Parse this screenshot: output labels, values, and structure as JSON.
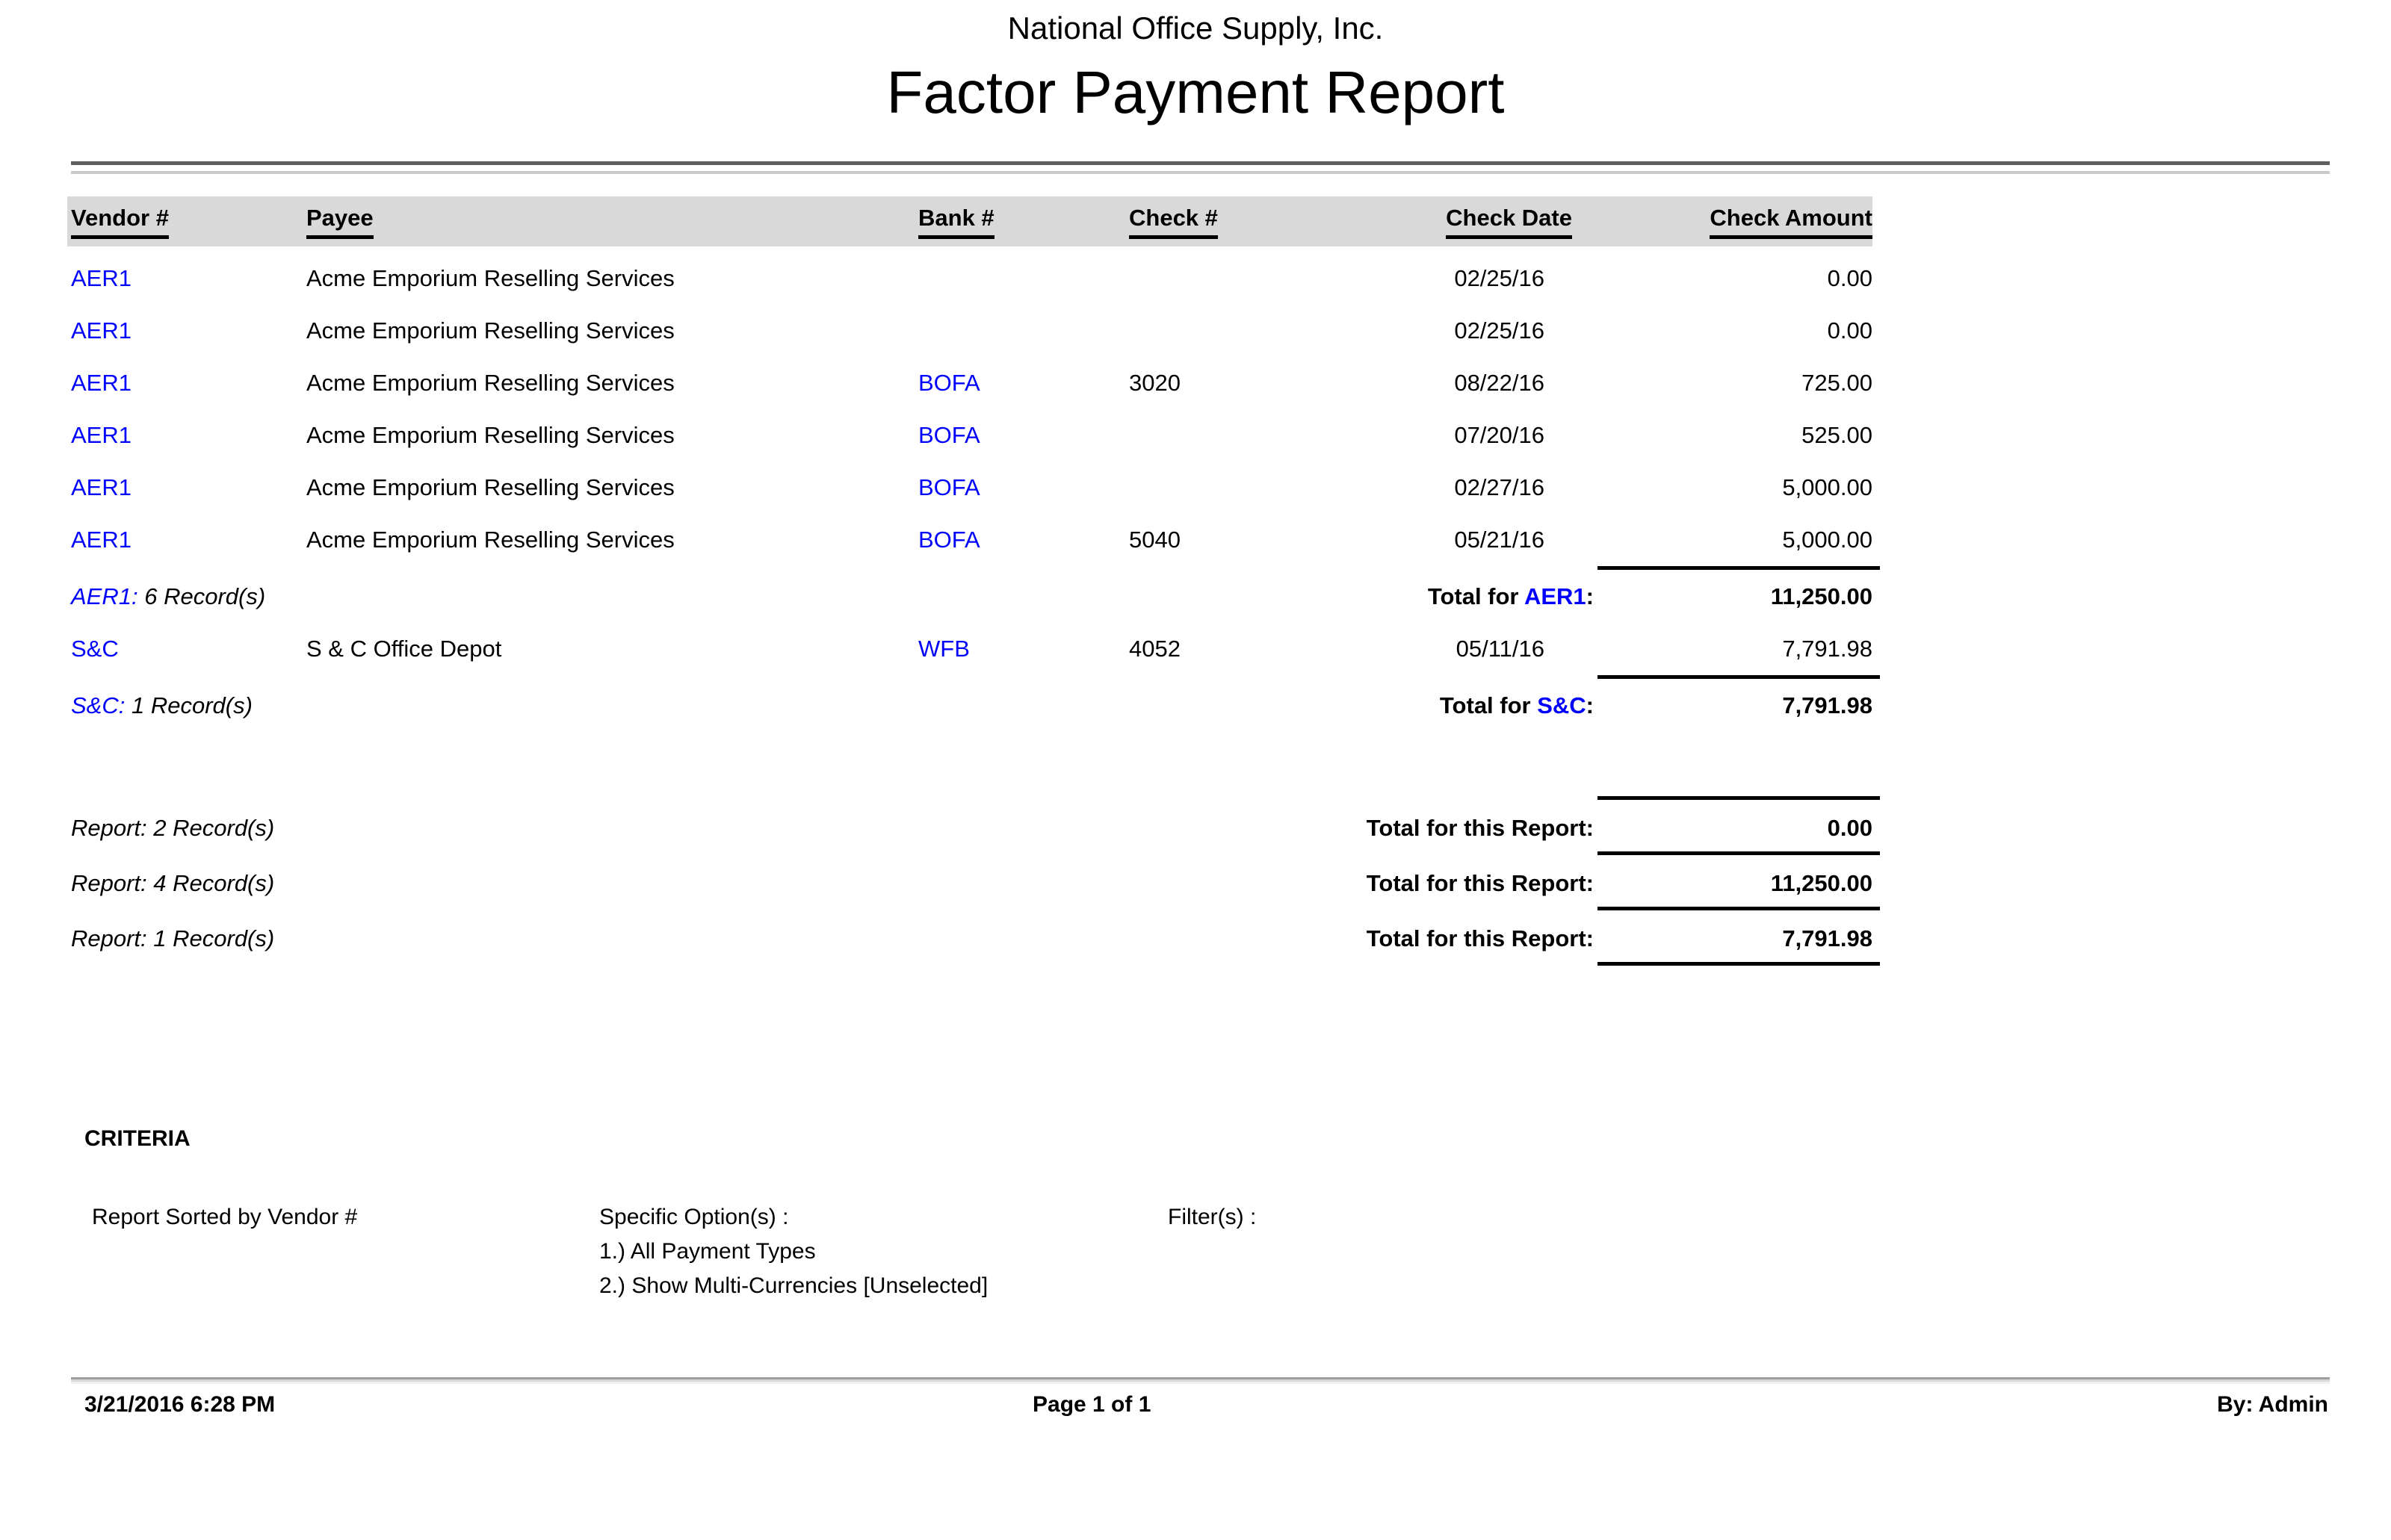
{
  "page": {
    "company": "National Office Supply, Inc.",
    "title": "Factor Payment Report"
  },
  "table": {
    "columns": {
      "vendor": "Vendor #",
      "payee": "Payee",
      "bank": "Bank #",
      "check": "Check #",
      "date": "Check Date",
      "amount": "Check Amount"
    },
    "groups": [
      {
        "rows": [
          {
            "vendor": "AER1",
            "payee": "Acme Emporium Reselling Services",
            "bank": "",
            "check_no": "",
            "check_date": "02/25/16",
            "amount": "0.00"
          },
          {
            "vendor": "AER1",
            "payee": "Acme Emporium Reselling Services",
            "bank": "",
            "check_no": "",
            "check_date": "02/25/16",
            "amount": "0.00"
          },
          {
            "vendor": "AER1",
            "payee": "Acme Emporium Reselling Services",
            "bank": "BOFA",
            "check_no": "3020",
            "check_date": "08/22/16",
            "amount": "725.00"
          },
          {
            "vendor": "AER1",
            "payee": "Acme Emporium Reselling Services",
            "bank": "BOFA",
            "check_no": "",
            "check_date": "07/20/16",
            "amount": "525.00"
          },
          {
            "vendor": "AER1",
            "payee": "Acme Emporium Reselling Services",
            "bank": "BOFA",
            "check_no": "",
            "check_date": "02/27/16",
            "amount": "5,000.00"
          },
          {
            "vendor": "AER1",
            "payee": "Acme Emporium Reselling Services",
            "bank": "BOFA",
            "check_no": "5040",
            "check_date": "05/21/16",
            "amount": "5,000.00"
          }
        ],
        "records_code": "AER1:",
        "records_rest": " 6 Record(s)",
        "total_prefix": "Total for ",
        "total_code": "AER1",
        "total_suffix": ":",
        "total_amount": "11,250.00"
      },
      {
        "rows": [
          {
            "vendor": "S&C",
            "payee": "S & C Office Depot",
            "bank": "WFB",
            "check_no": "4052",
            "check_date": "05/11/16",
            "amount": "7,791.98"
          }
        ],
        "records_code": "S&C:",
        "records_rest": " 1 Record(s)",
        "total_prefix": "Total for ",
        "total_code": "S&C",
        "total_suffix": ":",
        "total_amount": "7,791.98"
      }
    ],
    "report_totals": [
      {
        "records": "Report: 2 Record(s)",
        "label": "Total for this Report:",
        "amount": "0.00"
      },
      {
        "records": "Report: 4 Record(s)",
        "label": "Total for this Report:",
        "amount": "11,250.00"
      },
      {
        "records": "Report: 1 Record(s)",
        "label": "Total for this Report:",
        "amount": "7,791.98"
      }
    ]
  },
  "criteria": {
    "heading": "CRITERIA",
    "sorted_by": "Report Sorted by Vendor #",
    "specific_options_label": "Specific Option(s) :",
    "options": [
      "1.) All Payment Types",
      "2.) Show Multi-Currencies [Unselected]"
    ],
    "filters_label": "Filter(s) :"
  },
  "footer": {
    "datetime": "3/21/2016 6:28 PM",
    "page": "Page 1 of 1",
    "by": "By: Admin"
  },
  "colors": {
    "link_blue": "#0000ff",
    "header_band": "#d9d9d9"
  }
}
